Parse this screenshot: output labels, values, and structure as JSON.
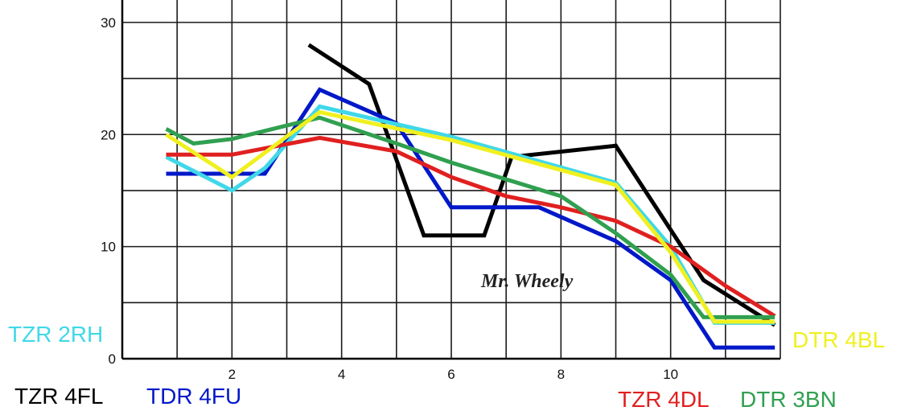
{
  "chart_data": {
    "type": "line",
    "title": "",
    "xlabel": "",
    "ylabel": "",
    "xlim": [
      0,
      12
    ],
    "ylim": [
      0,
      32
    ],
    "grid": true,
    "x_ticks": [
      2,
      4,
      6,
      8,
      10
    ],
    "y_ticks": [
      0,
      10,
      20,
      30
    ],
    "annotation": "Mr. Wheely",
    "series": [
      {
        "name": "TZR 4FL",
        "color": "#000000",
        "points": [
          [
            3.4,
            28
          ],
          [
            4.5,
            24.5
          ],
          [
            5.5,
            11
          ],
          [
            6.6,
            11
          ],
          [
            7.1,
            18
          ],
          [
            9.0,
            19
          ],
          [
            10.6,
            7
          ],
          [
            11.9,
            3
          ]
        ]
      },
      {
        "name": "TDR 4FU",
        "color": "#0018c8",
        "points": [
          [
            0.8,
            16.5
          ],
          [
            2.6,
            16.5
          ],
          [
            3.6,
            24
          ],
          [
            5.0,
            21
          ],
          [
            6.0,
            13.5
          ],
          [
            7.6,
            13.5
          ],
          [
            9.0,
            10.5
          ],
          [
            10.0,
            7
          ],
          [
            10.8,
            1
          ],
          [
            11.9,
            1
          ]
        ]
      },
      {
        "name": "TZR 2RH",
        "color": "#40d8e8",
        "points": [
          [
            0.8,
            18
          ],
          [
            2.0,
            15
          ],
          [
            2.6,
            17
          ],
          [
            3.6,
            22.5
          ],
          [
            6.0,
            19.8
          ],
          [
            9.0,
            15.7
          ],
          [
            10.0,
            10
          ],
          [
            10.8,
            3.2
          ],
          [
            11.9,
            3.2
          ]
        ]
      },
      {
        "name": "TZR 4DL",
        "color": "#e02020",
        "points": [
          [
            0.8,
            18.2
          ],
          [
            2.0,
            18.2
          ],
          [
            3.6,
            19.7
          ],
          [
            5.0,
            18.5
          ],
          [
            6.0,
            16.2
          ],
          [
            7.0,
            14.5
          ],
          [
            8.0,
            13.5
          ],
          [
            9.0,
            12.3
          ],
          [
            10.0,
            10
          ],
          [
            11.0,
            6.5
          ],
          [
            11.9,
            3.8
          ]
        ]
      },
      {
        "name": "DTR 3BN",
        "color": "#30a050",
        "points": [
          [
            0.8,
            20.5
          ],
          [
            1.3,
            19.2
          ],
          [
            2.0,
            19.6
          ],
          [
            3.0,
            20.8
          ],
          [
            3.6,
            21.5
          ],
          [
            5.0,
            19.2
          ],
          [
            6.0,
            17.5
          ],
          [
            8.0,
            14.5
          ],
          [
            9.0,
            11.2
          ],
          [
            10.0,
            7.5
          ],
          [
            10.6,
            3.7
          ],
          [
            11.9,
            3.7
          ]
        ]
      },
      {
        "name": "DTR 4BL",
        "color": "#f0f020",
        "points": [
          [
            0.8,
            20
          ],
          [
            2.0,
            16.2
          ],
          [
            3.6,
            22
          ],
          [
            6.0,
            19.5
          ],
          [
            9.0,
            15.5
          ],
          [
            10.0,
            9.5
          ],
          [
            10.8,
            3.3
          ],
          [
            11.9,
            3.3
          ]
        ]
      }
    ],
    "legend": [
      {
        "label": "TZR 2RH",
        "color": "#40d8e8"
      },
      {
        "label": "TZR 4FL",
        "color": "#000000"
      },
      {
        "label": "TDR 4FU",
        "color": "#0018c8"
      },
      {
        "label": "DTR 4BL",
        "color": "#f0f020"
      },
      {
        "label": "TZR 4DL",
        "color": "#e02020"
      },
      {
        "label": "DTR 3BN",
        "color": "#30a050"
      }
    ]
  }
}
